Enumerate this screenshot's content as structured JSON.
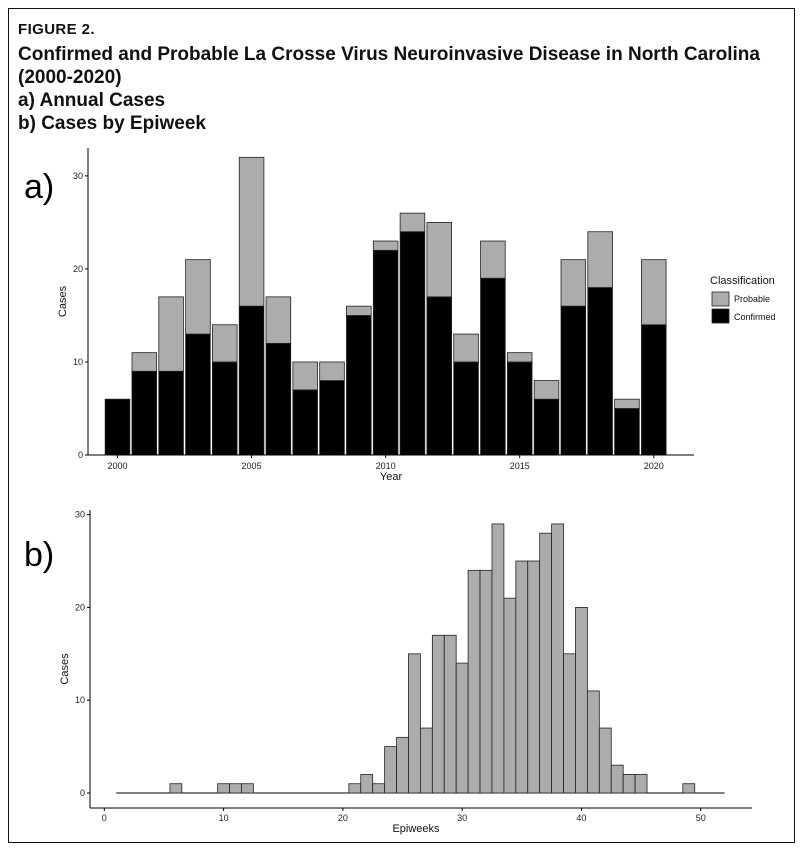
{
  "header": {
    "figure_label": "FIGURE 2.",
    "title_lines": [
      "Confirmed and Probable La Crosse Virus Neuroinvasive Disease in North Carolina",
      "(2000-2020)",
      "a) Annual Cases",
      "b) Cases by Epiweek"
    ]
  },
  "colors": {
    "probable": "#acacac",
    "confirmed": "#000000",
    "histogram": "#acacac",
    "bar_outline": "#222222"
  },
  "chart_data": [
    {
      "panel_label": "a)",
      "type": "bar",
      "stacked": true,
      "categories": [
        2000,
        2001,
        2002,
        2003,
        2004,
        2005,
        2006,
        2007,
        2008,
        2009,
        2010,
        2011,
        2012,
        2013,
        2014,
        2015,
        2016,
        2017,
        2018,
        2019,
        2020
      ],
      "series": [
        {
          "name": "Confirmed",
          "values": [
            6,
            9,
            9,
            13,
            10,
            16,
            12,
            7,
            8,
            15,
            22,
            24,
            17,
            10,
            19,
            10,
            6,
            16,
            18,
            5,
            14
          ]
        },
        {
          "name": "Probable",
          "values": [
            0,
            2,
            8,
            8,
            4,
            16,
            5,
            3,
            2,
            1,
            1,
            2,
            8,
            3,
            4,
            1,
            2,
            5,
            6,
            1,
            7
          ]
        }
      ],
      "title": "",
      "xlabel": "Year",
      "ylabel": "Cases",
      "xlim": [
        1998.9,
        2021.5
      ],
      "ylim": [
        0,
        33
      ],
      "x_ticks": [
        2000,
        2005,
        2010,
        2015,
        2020
      ],
      "y_ticks": [
        0,
        10,
        20,
        30
      ],
      "legend": {
        "title": "Classification",
        "position": "right",
        "entries": [
          "Probable",
          "Confirmed"
        ]
      }
    },
    {
      "panel_label": "b)",
      "type": "bar",
      "histogram": true,
      "x": [
        6,
        10,
        11,
        12,
        21,
        22,
        23,
        24,
        25,
        26,
        27,
        28,
        29,
        30,
        31,
        32,
        33,
        34,
        35,
        36,
        37,
        38,
        39,
        40,
        41,
        42,
        43,
        44,
        45,
        49
      ],
      "values": [
        1,
        1,
        1,
        1,
        1,
        2,
        1,
        5,
        6,
        15,
        7,
        17,
        17,
        14,
        24,
        24,
        29,
        21,
        25,
        25,
        28,
        29,
        15,
        20,
        11,
        7,
        3,
        2,
        2,
        1
      ],
      "title": "",
      "xlabel": "Epiweeks",
      "ylabel": "Cases",
      "xlim": [
        -1.2,
        54.3
      ],
      "ylim": [
        0,
        30.5
      ],
      "x_ticks": [
        0,
        10,
        20,
        30,
        40,
        50
      ],
      "y_ticks": [
        0,
        10,
        20,
        30
      ],
      "baseline_range": [
        1,
        52
      ]
    }
  ]
}
